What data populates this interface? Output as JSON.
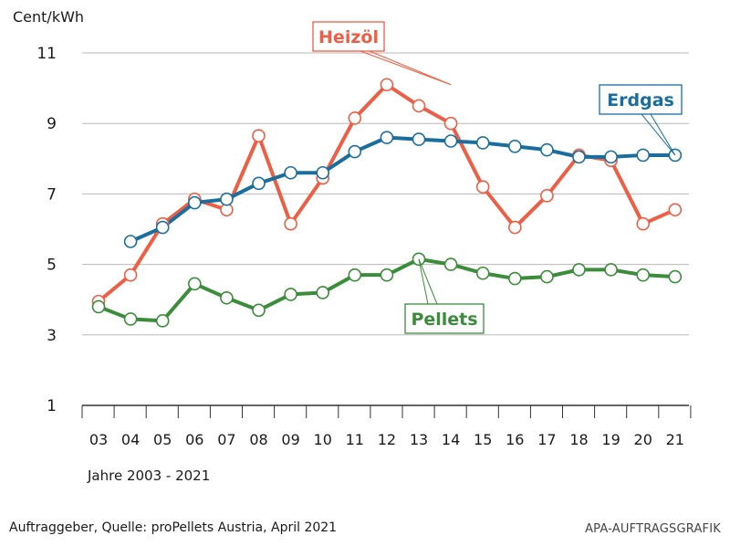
{
  "chart_data": {
    "type": "line",
    "unit_label": "Cent/kWh",
    "x_caption": "Jahre 2003 - 2021",
    "categories": [
      "03",
      "04",
      "05",
      "06",
      "07",
      "08",
      "09",
      "10",
      "11",
      "12",
      "13",
      "14",
      "15",
      "16",
      "17",
      "18",
      "19",
      "20",
      "21"
    ],
    "y_ticks": [
      1,
      3,
      5,
      7,
      9,
      11
    ],
    "ylim": [
      1,
      11
    ],
    "grid": true,
    "series": [
      {
        "name": "Heizöl",
        "color": "#ee5e45",
        "values": [
          3.95,
          4.7,
          6.15,
          6.85,
          6.55,
          8.65,
          6.15,
          7.45,
          9.15,
          10.1,
          9.5,
          9.0,
          7.2,
          6.05,
          6.95,
          8.1,
          7.95,
          6.15,
          6.55
        ]
      },
      {
        "name": "Erdgas",
        "color": "#1a6e9e",
        "values": [
          null,
          5.65,
          6.05,
          6.75,
          6.85,
          7.3,
          7.6,
          7.6,
          8.2,
          8.6,
          8.55,
          8.5,
          8.45,
          8.35,
          8.25,
          8.05,
          8.05,
          8.1,
          8.1
        ]
      },
      {
        "name": "Pellets",
        "color": "#3b8c3b",
        "values": [
          3.8,
          3.45,
          3.4,
          4.45,
          4.05,
          3.7,
          4.15,
          4.2,
          4.7,
          4.7,
          5.15,
          5.0,
          4.75,
          4.6,
          4.65,
          4.85,
          4.85,
          4.7,
          4.65
        ]
      }
    ]
  },
  "footer": {
    "source": "Auftraggeber, Quelle: proPellets Austria, April 2021",
    "credit": "APA-AUFTRAGSGRAFIK"
  }
}
